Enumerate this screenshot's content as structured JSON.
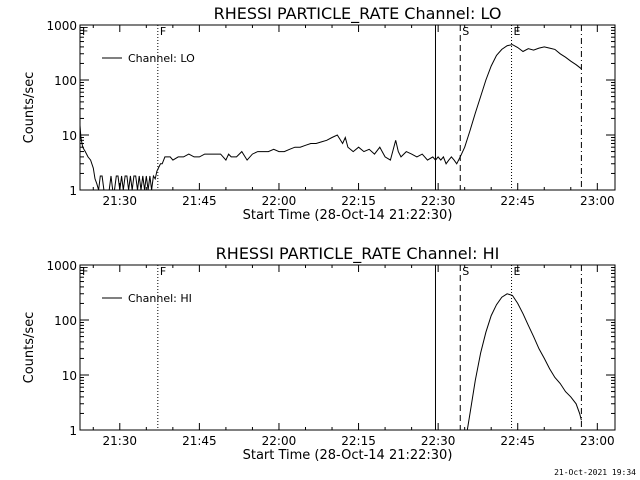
{
  "footer_timestamp": "21-Oct-2021 19:34",
  "chart_data": [
    {
      "type": "line",
      "title": "RHESSI PARTICLE_RATE Channel: LO",
      "xlabel": "Start Time (28-Oct-14 21:22:30)",
      "ylabel": "Counts/sec",
      "y_scale": "log",
      "ylim": [
        1,
        1000
      ],
      "xlim": [
        "21:22:30",
        "23:03:20"
      ],
      "x_ticks": [
        "21:30",
        "21:45",
        "22:00",
        "22:15",
        "22:30",
        "22:45",
        "23:00"
      ],
      "y_ticks": [
        "1",
        "10",
        "100",
        "1000"
      ],
      "legend": {
        "position": "top-left",
        "label": "Channel: LO"
      },
      "markers": [
        {
          "time": "21:22:30",
          "label": "F",
          "style": "dotted"
        },
        {
          "time": "21:37:10",
          "label": "F",
          "style": "dotted"
        },
        {
          "time": "22:29:30",
          "label": "",
          "style": "solid"
        },
        {
          "time": "22:34:10",
          "label": "S",
          "style": "dashed"
        },
        {
          "time": "22:43:50",
          "label": "E",
          "style": "dotted"
        },
        {
          "time": "22:57:00",
          "label": "",
          "style": "dashdot"
        }
      ],
      "series": [
        {
          "name": "Channel: LO",
          "points": [
            [
              "21:22:30",
              15
            ],
            [
              "21:22:40",
              9
            ],
            [
              "21:23:00",
              6
            ],
            [
              "21:23:30",
              5
            ],
            [
              "21:24:00",
              4
            ],
            [
              "21:24:30",
              3.5
            ],
            [
              "21:25:00",
              2.5
            ],
            [
              "21:25:20",
              1.6
            ],
            [
              "21:25:40",
              1.3
            ],
            [
              "21:26:00",
              1
            ],
            [
              "21:26:20",
              1.8
            ],
            [
              "21:26:40",
              1.8
            ],
            [
              "21:27:00",
              1
            ],
            [
              "21:27:20",
              1
            ],
            [
              "21:27:40",
              1
            ],
            [
              "21:28:00",
              1
            ],
            [
              "21:28:20",
              1.8
            ],
            [
              "21:28:40",
              1
            ],
            [
              "21:29:00",
              1
            ],
            [
              "21:29:20",
              1.8
            ],
            [
              "21:29:40",
              1.8
            ],
            [
              "21:30:00",
              1
            ],
            [
              "21:30:20",
              1.8
            ],
            [
              "21:30:40",
              1
            ],
            [
              "21:31:00",
              1.8
            ],
            [
              "21:31:20",
              1.8
            ],
            [
              "21:31:40",
              1
            ],
            [
              "21:32:00",
              1.8
            ],
            [
              "21:32:20",
              1
            ],
            [
              "21:32:40",
              1.8
            ],
            [
              "21:33:00",
              1.8
            ],
            [
              "21:33:20",
              1
            ],
            [
              "21:33:40",
              1.8
            ],
            [
              "21:34:00",
              1
            ],
            [
              "21:34:20",
              1.8
            ],
            [
              "21:34:40",
              1
            ],
            [
              "21:35:00",
              1.8
            ],
            [
              "21:35:20",
              1
            ],
            [
              "21:35:40",
              1.8
            ],
            [
              "21:36:00",
              1
            ],
            [
              "21:36:20",
              1.8
            ],
            [
              "21:36:40",
              1.6
            ],
            [
              "21:37:00",
              2.2
            ],
            [
              "21:37:40",
              3
            ],
            [
              "21:38:00",
              3
            ],
            [
              "21:38:30",
              4
            ],
            [
              "21:39:30",
              4
            ],
            [
              "21:40:00",
              3.5
            ],
            [
              "21:41:00",
              4
            ],
            [
              "21:42:00",
              4
            ],
            [
              "21:43:00",
              4.5
            ],
            [
              "21:44:00",
              4
            ],
            [
              "21:45:00",
              4
            ],
            [
              "21:46:00",
              4.5
            ],
            [
              "21:47:00",
              4.5
            ],
            [
              "21:48:00",
              4.5
            ],
            [
              "21:49:00",
              4.5
            ],
            [
              "21:50:00",
              3.5
            ],
            [
              "21:50:30",
              4.5
            ],
            [
              "21:51:00",
              4
            ],
            [
              "21:52:00",
              4
            ],
            [
              "21:53:00",
              5
            ],
            [
              "21:54:00",
              3.5
            ],
            [
              "21:55:00",
              4.5
            ],
            [
              "21:56:00",
              5
            ],
            [
              "21:57:00",
              5
            ],
            [
              "21:58:00",
              5
            ],
            [
              "21:59:00",
              5.5
            ],
            [
              "22:00:00",
              5
            ],
            [
              "22:01:00",
              5
            ],
            [
              "22:02:00",
              5.5
            ],
            [
              "22:03:00",
              6
            ],
            [
              "22:04:00",
              6
            ],
            [
              "22:05:00",
              6.5
            ],
            [
              "22:06:00",
              7
            ],
            [
              "22:07:00",
              7
            ],
            [
              "22:08:00",
              7.5
            ],
            [
              "22:09:00",
              8
            ],
            [
              "22:10:00",
              9
            ],
            [
              "22:11:00",
              10
            ],
            [
              "22:12:00",
              7
            ],
            [
              "22:12:30",
              9
            ],
            [
              "22:13:00",
              6
            ],
            [
              "22:14:00",
              5
            ],
            [
              "22:15:00",
              6
            ],
            [
              "22:16:00",
              5
            ],
            [
              "22:17:00",
              5.5
            ],
            [
              "22:18:00",
              4.5
            ],
            [
              "22:19:00",
              6
            ],
            [
              "22:20:00",
              4
            ],
            [
              "22:21:00",
              3.5
            ],
            [
              "22:22:00",
              8
            ],
            [
              "22:22:30",
              5
            ],
            [
              "22:23:00",
              4
            ],
            [
              "22:24:00",
              5
            ],
            [
              "22:25:00",
              4.5
            ],
            [
              "22:26:00",
              4
            ],
            [
              "22:27:00",
              4.5
            ],
            [
              "22:28:00",
              3.5
            ],
            [
              "22:29:00",
              4
            ],
            [
              "22:29:30",
              3.5
            ],
            [
              "22:30:00",
              4
            ],
            [
              "22:30:30",
              3.5
            ],
            [
              "22:31:00",
              4
            ],
            [
              "22:31:30",
              3
            ],
            [
              "22:32:00",
              3.5
            ],
            [
              "22:32:30",
              4
            ],
            [
              "22:33:00",
              3.5
            ],
            [
              "22:33:30",
              3
            ],
            [
              "22:34:10",
              4
            ],
            [
              "22:35:00",
              6
            ],
            [
              "22:36:00",
              12
            ],
            [
              "22:37:00",
              25
            ],
            [
              "22:38:00",
              50
            ],
            [
              "22:39:00",
              100
            ],
            [
              "22:40:00",
              180
            ],
            [
              "22:41:00",
              280
            ],
            [
              "22:42:00",
              360
            ],
            [
              "22:43:00",
              420
            ],
            [
              "22:44:00",
              440
            ],
            [
              "22:45:00",
              390
            ],
            [
              "22:46:00",
              330
            ],
            [
              "22:47:00",
              370
            ],
            [
              "22:48:00",
              350
            ],
            [
              "22:49:00",
              380
            ],
            [
              "22:50:00",
              400
            ],
            [
              "22:51:00",
              380
            ],
            [
              "22:52:00",
              360
            ],
            [
              "22:53:00",
              300
            ],
            [
              "22:54:00",
              260
            ],
            [
              "22:55:00",
              220
            ],
            [
              "22:56:00",
              190
            ],
            [
              "22:57:00",
              160
            ]
          ]
        }
      ]
    },
    {
      "type": "line",
      "title": "RHESSI PARTICLE_RATE Channel: HI",
      "xlabel": "Start Time (28-Oct-14 21:22:30)",
      "ylabel": "Counts/sec",
      "y_scale": "log",
      "ylim": [
        1,
        1000
      ],
      "xlim": [
        "21:22:30",
        "23:03:20"
      ],
      "x_ticks": [
        "21:30",
        "21:45",
        "22:00",
        "22:15",
        "22:30",
        "22:45",
        "23:00"
      ],
      "y_ticks": [
        "1",
        "10",
        "100",
        "1000"
      ],
      "legend": {
        "position": "top-left",
        "label": "Channel: HI"
      },
      "markers": [
        {
          "time": "21:22:30",
          "label": "F",
          "style": "dotted"
        },
        {
          "time": "21:37:10",
          "label": "F",
          "style": "dotted"
        },
        {
          "time": "22:29:30",
          "label": "",
          "style": "solid"
        },
        {
          "time": "22:34:10",
          "label": "S",
          "style": "dashed"
        },
        {
          "time": "22:43:50",
          "label": "E",
          "style": "dotted"
        },
        {
          "time": "22:57:00",
          "label": "",
          "style": "dashdot"
        }
      ],
      "series": [
        {
          "name": "Channel: HI",
          "points": [
            [
              "22:35:30",
              1
            ],
            [
              "22:36:00",
              2
            ],
            [
              "22:37:00",
              8
            ],
            [
              "22:38:00",
              25
            ],
            [
              "22:39:00",
              60
            ],
            [
              "22:40:00",
              120
            ],
            [
              "22:41:00",
              190
            ],
            [
              "22:42:00",
              260
            ],
            [
              "22:43:00",
              300
            ],
            [
              "22:44:00",
              280
            ],
            [
              "22:45:00",
              200
            ],
            [
              "22:46:00",
              130
            ],
            [
              "22:47:00",
              80
            ],
            [
              "22:48:00",
              50
            ],
            [
              "22:49:00",
              30
            ],
            [
              "22:50:00",
              20
            ],
            [
              "22:51:00",
              13
            ],
            [
              "22:52:00",
              9
            ],
            [
              "22:53:00",
              7
            ],
            [
              "22:54:00",
              5
            ],
            [
              "22:55:00",
              4
            ],
            [
              "22:56:00",
              3
            ],
            [
              "22:56:40",
              2
            ],
            [
              "22:57:00",
              1.5
            ]
          ]
        }
      ]
    }
  ]
}
